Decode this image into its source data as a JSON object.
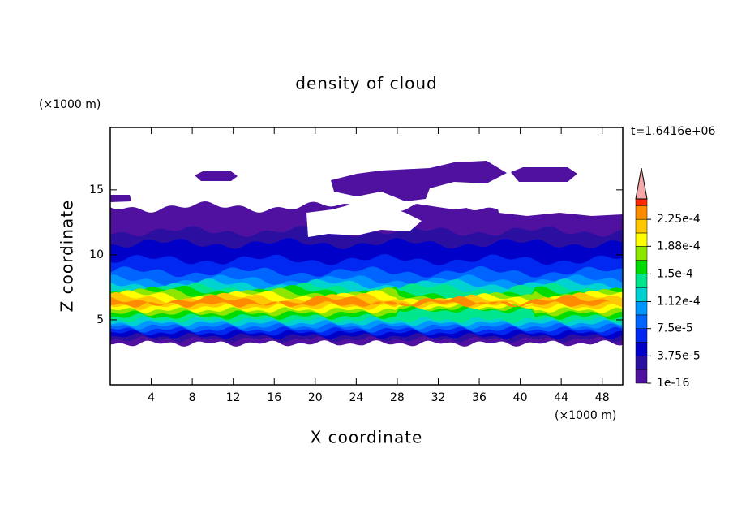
{
  "chart_data": {
    "type": "contour",
    "title": "density of cloud",
    "x_label": "X coordinate",
    "y_label": "Z coordinate",
    "x_unit": "(×1000 m)",
    "y_unit": "(×1000 m)",
    "time_label": "t=1.6416e+06",
    "xlim": [
      0,
      50
    ],
    "ylim": [
      0,
      19.8
    ],
    "xticks": [
      4,
      8,
      12,
      16,
      20,
      24,
      28,
      32,
      36,
      40,
      44,
      48
    ],
    "yticks": [
      5,
      10,
      15
    ],
    "clim": [
      1e-16,
      0.000253
    ],
    "levels": [
      1e-16,
      1.875e-05,
      3.75e-05,
      5.625e-05,
      7.5e-05,
      9.375e-05,
      0.000112,
      0.00013125,
      0.00015,
      0.00016875,
      0.000188,
      0.00020625,
      0.000225,
      0.00024375
    ],
    "colors": [
      "#5010a0",
      "#2a0fa0",
      "#0000c8",
      "#0028f0",
      "#0064ff",
      "#0096ff",
      "#00d2d2",
      "#00e68c",
      "#00dc00",
      "#8ce600",
      "#ffff00",
      "#ffc800",
      "#ff8c00",
      "#ff2800"
    ],
    "extend_color": "#f4a8a8",
    "cticks": [
      {
        "value": 1e-16,
        "label": "1e-16"
      },
      {
        "value": 3.75e-05,
        "label": "3.75e-5"
      },
      {
        "value": 7.5e-05,
        "label": "7.5e-5"
      },
      {
        "value": 0.000112,
        "label": "1.12e-4"
      },
      {
        "value": 0.00015,
        "label": "1.5e-4"
      },
      {
        "value": 0.000188,
        "label": "1.88e-4"
      },
      {
        "value": 0.000225,
        "label": "2.25e-4"
      }
    ]
  }
}
